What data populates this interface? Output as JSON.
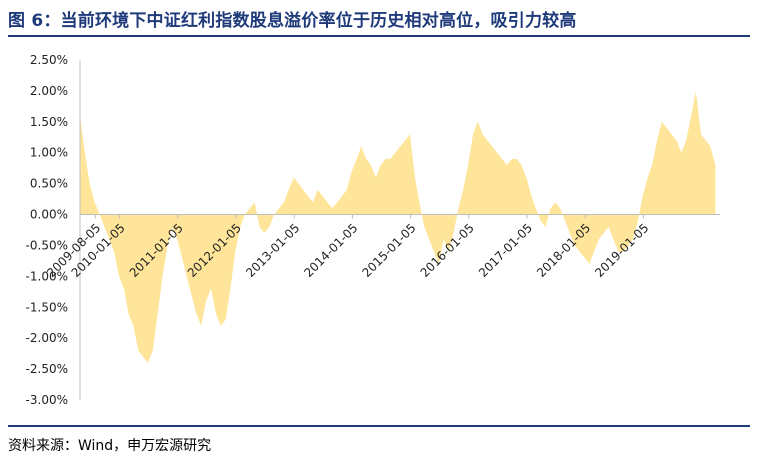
{
  "title": "图 6：当前环境下中证红利指数股息溢价率位于历史相对高位，吸引力较高",
  "source": "资料来源：Wind，申万宏源研究",
  "colors": {
    "title": "#1f3a7a",
    "fill": "#ffe599",
    "axis": "#bfbfbf"
  },
  "chart_data": {
    "type": "area",
    "title": "",
    "xlabel": "",
    "ylabel": "",
    "ylim": [
      -0.03,
      0.025
    ],
    "y_ticks": [
      0.025,
      0.02,
      0.015,
      0.01,
      0.005,
      0.0,
      -0.005,
      -0.01,
      -0.015,
      -0.02,
      -0.025,
      -0.03
    ],
    "y_tick_labels": [
      "2.50%",
      "2.00%",
      "1.50%",
      "1.00%",
      "0.50%",
      "0.00%",
      "-0.50%",
      "-1.00%",
      "-1.50%",
      "-2.00%",
      "-2.50%",
      "-3.00%"
    ],
    "x_range": [
      "2009-05-01",
      "2020-04-30"
    ],
    "x_ticks": [
      "2009-08-05",
      "2010-01-05",
      "2011-01-05",
      "2012-01-05",
      "2013-01-05",
      "2014-01-05",
      "2015-01-05",
      "2016-01-05",
      "2017-01-05",
      "2018-01-05",
      "2019-01-05"
    ],
    "x_tick_labels": [
      "2009-08-05",
      "2010-01-05",
      "2011-01-05",
      "2012-01-05",
      "2013-01-05",
      "2014-01-05",
      "2015-01-05",
      "2016-01-05",
      "2017-01-05",
      "2018-01-05",
      "2019-01-05"
    ],
    "grid": false,
    "legend": false,
    "series": [
      {
        "x": [
          "2009-05-01",
          "2009-06-01",
          "2009-07-01",
          "2009-08-01",
          "2009-09-01",
          "2009-10-01",
          "2009-11-01",
          "2009-12-01",
          "2010-01-01",
          "2010-02-01",
          "2010-03-01",
          "2010-04-01",
          "2010-05-01",
          "2010-06-01",
          "2010-07-01",
          "2010-08-01",
          "2010-09-01",
          "2010-10-01",
          "2010-11-01",
          "2010-12-01",
          "2011-01-01",
          "2011-02-01",
          "2011-03-01",
          "2011-04-01",
          "2011-05-01",
          "2011-06-01",
          "2011-07-01",
          "2011-08-01",
          "2011-09-01",
          "2011-10-01",
          "2011-11-01",
          "2011-12-01",
          "2012-01-01",
          "2012-02-01",
          "2012-03-01",
          "2012-04-01",
          "2012-05-01",
          "2012-06-01",
          "2012-07-01",
          "2012-08-01",
          "2012-09-01",
          "2012-10-01",
          "2012-11-01",
          "2012-12-01",
          "2013-01-01",
          "2013-02-01",
          "2013-03-01",
          "2013-04-01",
          "2013-05-01",
          "2013-06-01",
          "2013-07-01",
          "2013-08-01",
          "2013-09-01",
          "2013-10-01",
          "2013-11-01",
          "2013-12-01",
          "2014-01-01",
          "2014-02-01",
          "2014-03-01",
          "2014-04-01",
          "2014-05-01",
          "2014-06-01",
          "2014-07-01",
          "2014-08-01",
          "2014-09-01",
          "2014-10-01",
          "2014-11-01",
          "2014-12-01",
          "2015-01-01",
          "2015-02-01",
          "2015-03-01",
          "2015-04-01",
          "2015-05-01",
          "2015-06-01",
          "2015-07-01",
          "2015-08-01",
          "2015-09-01",
          "2015-10-01",
          "2015-11-01",
          "2015-12-01",
          "2016-01-01",
          "2016-02-01",
          "2016-03-01",
          "2016-04-01",
          "2016-05-01",
          "2016-06-01",
          "2016-07-01",
          "2016-08-01",
          "2016-09-01",
          "2016-10-01",
          "2016-11-01",
          "2016-12-01",
          "2017-01-01",
          "2017-02-01",
          "2017-03-01",
          "2017-04-01",
          "2017-05-01",
          "2017-06-01",
          "2017-07-01",
          "2017-08-01",
          "2017-09-01",
          "2017-10-01",
          "2017-11-01",
          "2017-12-01",
          "2018-01-01",
          "2018-02-01",
          "2018-03-01",
          "2018-04-01",
          "2018-05-01",
          "2018-06-01",
          "2018-07-01",
          "2018-08-01",
          "2018-09-01",
          "2018-10-01",
          "2018-11-01",
          "2018-12-01",
          "2019-01-01",
          "2019-02-01",
          "2019-03-01",
          "2019-04-01",
          "2019-05-01",
          "2019-06-01",
          "2019-07-01",
          "2019-08-01",
          "2019-09-01",
          "2019-10-01",
          "2019-11-01",
          "2019-12-01",
          "2020-01-01",
          "2020-02-01",
          "2020-03-01",
          "2020-04-01"
        ],
        "values": [
          0.016,
          0.01,
          0.005,
          0.002,
          0.0,
          -0.002,
          -0.004,
          -0.006,
          -0.01,
          -0.012,
          -0.016,
          -0.018,
          -0.022,
          -0.023,
          -0.024,
          -0.022,
          -0.016,
          -0.01,
          -0.005,
          -0.002,
          -0.004,
          -0.007,
          -0.01,
          -0.013,
          -0.016,
          -0.018,
          -0.014,
          -0.012,
          -0.016,
          -0.018,
          -0.017,
          -0.012,
          -0.006,
          -0.002,
          0.0,
          0.001,
          0.002,
          -0.002,
          -0.003,
          -0.002,
          0.0,
          0.001,
          0.002,
          0.004,
          0.006,
          0.005,
          0.004,
          0.003,
          0.002,
          0.004,
          0.003,
          0.002,
          0.001,
          0.002,
          0.003,
          0.004,
          0.007,
          0.009,
          0.011,
          0.009,
          0.008,
          0.006,
          0.008,
          0.009,
          0.009,
          0.01,
          0.011,
          0.012,
          0.013,
          0.006,
          0.002,
          -0.002,
          -0.004,
          -0.006,
          -0.008,
          -0.004,
          -0.006,
          -0.003,
          0.001,
          0.004,
          0.008,
          0.013,
          0.015,
          0.013,
          0.012,
          0.011,
          0.01,
          0.009,
          0.008,
          0.009,
          0.009,
          0.008,
          0.006,
          0.003,
          0.001,
          -0.001,
          -0.002,
          0.001,
          0.002,
          0.001,
          -0.001,
          -0.003,
          -0.005,
          -0.006,
          -0.007,
          -0.008,
          -0.006,
          -0.004,
          -0.003,
          -0.002,
          -0.004,
          -0.006,
          -0.006,
          -0.005,
          -0.004,
          -0.001,
          0.003,
          0.006,
          0.008,
          0.012,
          0.015,
          0.014,
          0.013,
          0.012,
          0.01,
          0.012,
          0.016,
          0.02,
          0.013,
          0.012,
          0.011,
          0.008
        ]
      }
    ]
  }
}
